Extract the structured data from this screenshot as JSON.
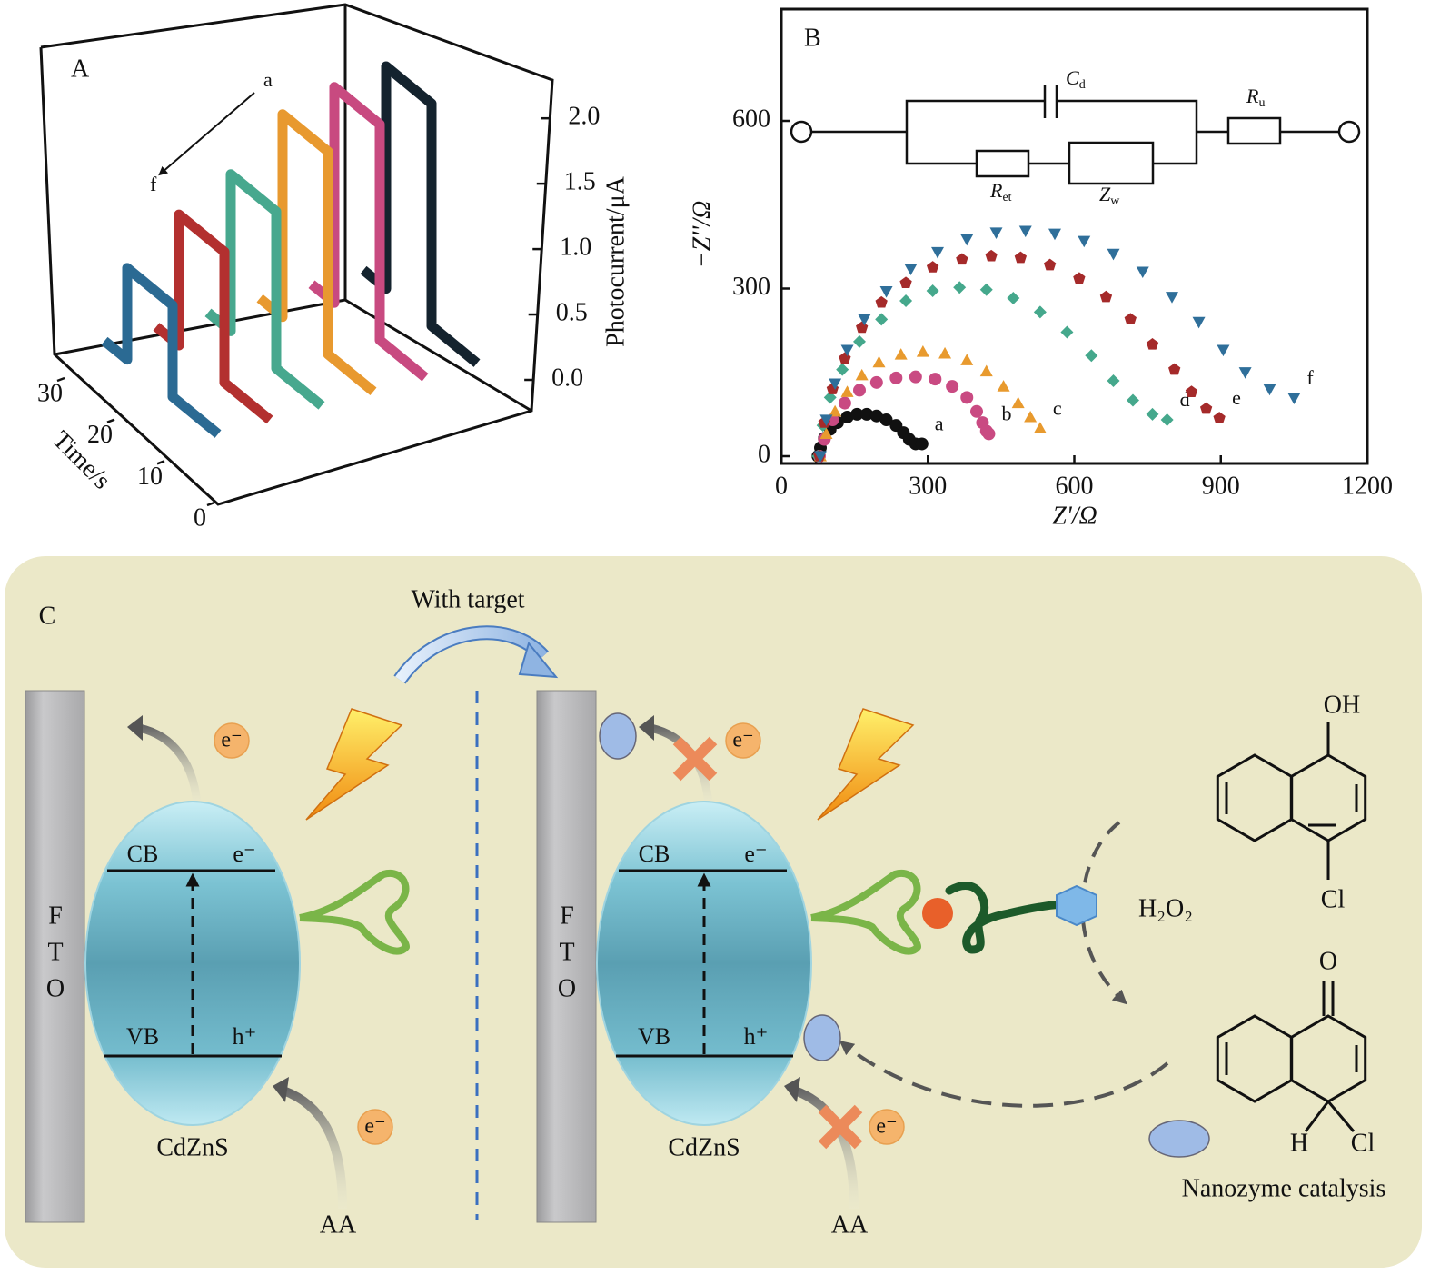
{
  "chart_data": [
    {
      "type": "waterfall",
      "panel_label": "A",
      "xlabel": "Time/s",
      "ylabel": "Photocurrent/μA",
      "xlim": [
        0,
        30
      ],
      "xticks": [
        0,
        10,
        20,
        30
      ],
      "ylim": [
        0,
        2.3
      ],
      "yticks": [
        {
          "value": 0,
          "label": "0.0"
        },
        {
          "value": 0.5,
          "label": "0.5"
        },
        {
          "value": 1,
          "label": "1.0"
        },
        {
          "value": 1.5,
          "label": "1.5"
        },
        {
          "value": 2,
          "label": "2.0"
        }
      ],
      "annotations": [
        "a",
        "f"
      ],
      "series": [
        {
          "color": "#2b6a93",
          "x": [
            25,
            20,
            20,
            10,
            10,
            0
          ],
          "values": [
            0.1,
            0.1,
            0.8,
            0.8,
            0.1,
            0.1
          ]
        },
        {
          "color": "#b3302f",
          "x": [
            25,
            20,
            20,
            10,
            10,
            0
          ],
          "values": [
            0.1,
            0.1,
            1.1,
            1.1,
            0.1,
            0.1
          ]
        },
        {
          "color": "#47a88e",
          "x": [
            25,
            20,
            20,
            10,
            10,
            0
          ],
          "values": [
            0.1,
            0.1,
            1.3,
            1.3,
            0.1,
            0.1
          ]
        },
        {
          "color": "#e8992f",
          "x": [
            25,
            20,
            20,
            10,
            10,
            0
          ],
          "values": [
            0.1,
            0.1,
            1.65,
            1.65,
            0.1,
            0.1
          ]
        },
        {
          "color": "#c84a80",
          "x": [
            25,
            20,
            20,
            10,
            10,
            0
          ],
          "values": [
            0.1,
            0.1,
            1.75,
            1.75,
            0.1,
            0.1
          ]
        },
        {
          "color": "#14232e",
          "x": [
            25,
            20,
            20,
            10,
            10,
            0
          ],
          "values": [
            0.1,
            0.1,
            1.8,
            1.8,
            0.1,
            0.1
          ]
        }
      ]
    },
    {
      "type": "scatter",
      "panel_label": "B",
      "xlabel": "Z'/Ω",
      "ylabel": "−Z''/Ω",
      "xlim": [
        0,
        1200
      ],
      "xticks": [
        0,
        300,
        600,
        900,
        1200
      ],
      "ylim": [
        -13,
        800
      ],
      "yticks": [
        0,
        300,
        600
      ],
      "circuit_labels": [
        {
          "main": "C",
          "sub": "d"
        },
        {
          "main": "R",
          "sub": "u"
        },
        {
          "main": "R",
          "sub": "et"
        },
        {
          "main": "Z",
          "sub": "w"
        }
      ],
      "series": [
        {
          "name": "a",
          "color": "#111111",
          "marker": "circle",
          "x": [
            75,
            80,
            88,
            100,
            115,
            135,
            155,
            175,
            195,
            215,
            235,
            250,
            262,
            275,
            288
          ],
          "values": [
            0,
            15,
            32,
            48,
            60,
            70,
            75,
            75,
            72,
            65,
            55,
            42,
            30,
            22,
            22
          ]
        },
        {
          "name": "b",
          "color": "#c94a82",
          "marker": "circle",
          "x": [
            78,
            88,
            105,
            130,
            160,
            195,
            235,
            275,
            315,
            350,
            380,
            400,
            412,
            420,
            425
          ],
          "values": [
            0,
            30,
            65,
            95,
            118,
            132,
            140,
            142,
            138,
            125,
            105,
            80,
            60,
            45,
            40
          ]
        },
        {
          "name": "c",
          "color": "#e89a2e",
          "marker": "triangle-up",
          "x": [
            80,
            92,
            110,
            135,
            165,
            200,
            245,
            290,
            335,
            380,
            420,
            455,
            485,
            510,
            530
          ],
          "values": [
            0,
            40,
            80,
            115,
            145,
            168,
            182,
            187,
            184,
            172,
            152,
            125,
            95,
            70,
            50
          ]
        },
        {
          "name": "d",
          "color": "#45a88c",
          "marker": "diamond",
          "x": [
            75,
            85,
            100,
            125,
            160,
            205,
            255,
            310,
            365,
            420,
            475,
            530,
            585,
            635,
            680,
            720,
            760,
            790
          ],
          "values": [
            0,
            55,
            105,
            155,
            205,
            245,
            278,
            296,
            302,
            298,
            283,
            258,
            222,
            180,
            135,
            100,
            75,
            65
          ]
        },
        {
          "name": "e",
          "color": "#a52a2a",
          "marker": "pentagon",
          "x": [
            78,
            88,
            105,
            130,
            165,
            205,
            255,
            310,
            370,
            430,
            490,
            550,
            610,
            665,
            715,
            760,
            805,
            840,
            870,
            897
          ],
          "values": [
            0,
            60,
            120,
            175,
            230,
            275,
            310,
            338,
            352,
            358,
            355,
            342,
            318,
            285,
            245,
            200,
            155,
            115,
            85,
            68
          ]
        },
        {
          "name": "f",
          "color": "#2f6f9a",
          "marker": "triangle-down",
          "x": [
            80,
            92,
            110,
            135,
            170,
            215,
            265,
            320,
            380,
            440,
            500,
            560,
            620,
            680,
            740,
            800,
            855,
            905,
            950,
            1000,
            1050
          ],
          "values": [
            0,
            65,
            130,
            190,
            245,
            295,
            335,
            365,
            388,
            400,
            403,
            398,
            385,
            362,
            330,
            285,
            240,
            190,
            150,
            120,
            104
          ]
        }
      ]
    }
  ],
  "diagram": {
    "panel_label": "C",
    "transition": "With target",
    "left": {
      "fto": [
        "F",
        "T",
        "O"
      ],
      "cb": "CB",
      "cb_e": "e⁻",
      "vb": "VB",
      "vb_h": "h⁺",
      "material": "CdZnS",
      "donor": "AA",
      "electrons": [
        "e⁻",
        "e⁻"
      ]
    },
    "right": {
      "fto": [
        "F",
        "T",
        "O"
      ],
      "cb": "CB",
      "cb_e": "e⁻",
      "vb": "VB",
      "vb_h": "h⁺",
      "material": "CdZnS",
      "donor": "AA",
      "electrons": [
        "e⁻",
        "e⁻"
      ]
    },
    "reagent": "H₂O₂",
    "substrate": {
      "top": "OH",
      "bottom": "Cl"
    },
    "product": {
      "top": "O",
      "left": "H",
      "right": "Cl"
    },
    "caption": "Nanozyme catalysis"
  }
}
